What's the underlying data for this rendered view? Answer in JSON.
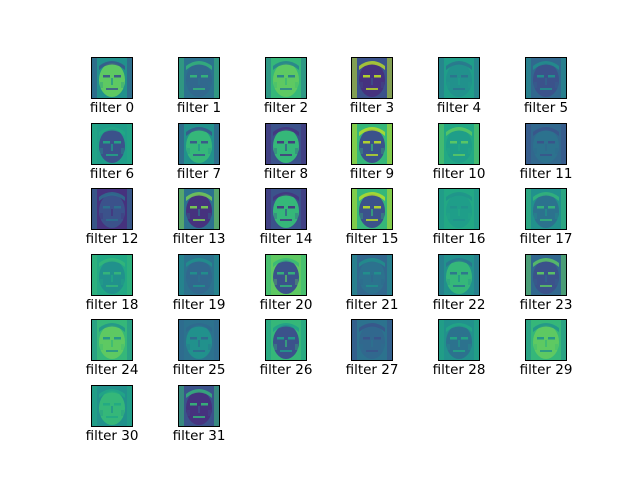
{
  "figure": {
    "columns": 6,
    "filters": [
      {
        "label": "filter 0",
        "tone": [
          "#21918c",
          "#5ec962",
          "#3b528b"
        ]
      },
      {
        "label": "filter 1",
        "tone": [
          "#2c728e",
          "#31688e",
          "#35b779"
        ]
      },
      {
        "label": "filter 2",
        "tone": [
          "#35b779",
          "#5ec962",
          "#287d8e"
        ]
      },
      {
        "label": "filter 3",
        "tone": [
          "#3b528b",
          "#46327e",
          "#bddf26"
        ]
      },
      {
        "label": "filter 4",
        "tone": [
          "#1f9e89",
          "#21918c",
          "#2c728e"
        ]
      },
      {
        "label": "filter 5",
        "tone": [
          "#31688e",
          "#3b528b",
          "#21918c"
        ]
      },
      {
        "label": "filter 6",
        "tone": [
          "#1f9e89",
          "#3b528b",
          "#22a884"
        ]
      },
      {
        "label": "filter 7",
        "tone": [
          "#21918c",
          "#35b779",
          "#3b528b"
        ]
      },
      {
        "label": "filter 8",
        "tone": [
          "#3b528b",
          "#35b779",
          "#46327e"
        ]
      },
      {
        "label": "filter 9",
        "tone": [
          "#35b779",
          "#3b528b",
          "#bddf26"
        ]
      },
      {
        "label": "filter 10",
        "tone": [
          "#22a884",
          "#1f9e89",
          "#5ec962"
        ]
      },
      {
        "label": "filter 11",
        "tone": [
          "#31688e",
          "#2c728e",
          "#3b528b"
        ]
      },
      {
        "label": "filter 12",
        "tone": [
          "#46327e",
          "#3b528b",
          "#2c728e"
        ]
      },
      {
        "label": "filter 13",
        "tone": [
          "#2c728e",
          "#46327e",
          "#7ad151"
        ]
      },
      {
        "label": "filter 14",
        "tone": [
          "#3b528b",
          "#35b779",
          "#46327e"
        ]
      },
      {
        "label": "filter 15",
        "tone": [
          "#35b779",
          "#3b528b",
          "#bddf26"
        ]
      },
      {
        "label": "filter 16",
        "tone": [
          "#22a884",
          "#1f9e89",
          "#21918c"
        ]
      },
      {
        "label": "filter 17",
        "tone": [
          "#21918c",
          "#2c728e",
          "#35b779"
        ]
      },
      {
        "label": "filter 18",
        "tone": [
          "#22a884",
          "#21918c",
          "#35b779"
        ]
      },
      {
        "label": "filter 19",
        "tone": [
          "#2c728e",
          "#31688e",
          "#21918c"
        ]
      },
      {
        "label": "filter 20",
        "tone": [
          "#5ec962",
          "#3b528b",
          "#35b779"
        ]
      },
      {
        "label": "filter 21",
        "tone": [
          "#31688e",
          "#2c728e",
          "#21918c"
        ]
      },
      {
        "label": "filter 22",
        "tone": [
          "#21918c",
          "#35b779",
          "#2c728e"
        ]
      },
      {
        "label": "filter 23",
        "tone": [
          "#31688e",
          "#3b528b",
          "#5ec962"
        ]
      },
      {
        "label": "filter 24",
        "tone": [
          "#35b779",
          "#5ec962",
          "#21918c"
        ]
      },
      {
        "label": "filter 25",
        "tone": [
          "#2c728e",
          "#21918c",
          "#31688e"
        ]
      },
      {
        "label": "filter 26",
        "tone": [
          "#35b779",
          "#3b528b",
          "#1f9e89"
        ]
      },
      {
        "label": "filter 27",
        "tone": [
          "#2c728e",
          "#31688e",
          "#3b528b"
        ]
      },
      {
        "label": "filter 28",
        "tone": [
          "#21918c",
          "#2c728e",
          "#22a884"
        ]
      },
      {
        "label": "filter 29",
        "tone": [
          "#35b779",
          "#5ec962",
          "#21918c"
        ]
      },
      {
        "label": "filter 30",
        "tone": [
          "#21918c",
          "#35b779",
          "#22a884"
        ]
      },
      {
        "label": "filter 31",
        "tone": [
          "#3b528b",
          "#46327e",
          "#35b779"
        ]
      }
    ]
  }
}
